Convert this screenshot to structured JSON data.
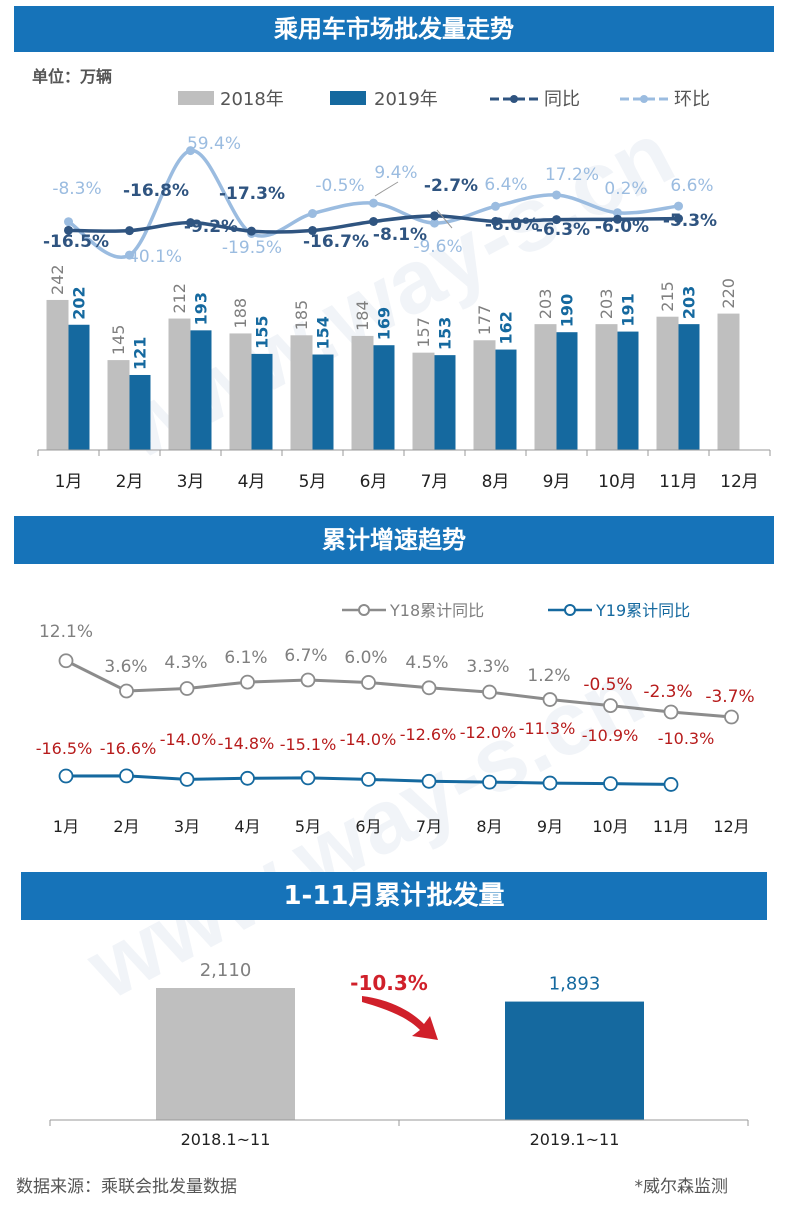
{
  "banners": {
    "monthly": "乘用车市场批发量走势",
    "cumulative_growth": "累计增速趋势",
    "cumulative_volume": "1-11月累计批发量"
  },
  "unit_label": "单位：万辆",
  "footer": {
    "source": "数据来源：乘联会批发量数据",
    "credit": "*威尔森监测"
  },
  "watermark": "www.way-s.cn",
  "colors": {
    "y2018": "#bfbfbf",
    "y2019": "#15699f",
    "yoy_line": "#2f5480",
    "mom_line": "#9bbce0",
    "y18_line": "#8c8c8c",
    "negative_text": "#b71c1c",
    "banner": "#1673b9"
  },
  "chart_data": [
    {
      "id": "monthly",
      "type": "bar",
      "categories": [
        "1月",
        "2月",
        "3月",
        "4月",
        "5月",
        "6月",
        "7月",
        "8月",
        "9月",
        "10月",
        "11月",
        "12月"
      ],
      "series": [
        {
          "name": "2018年",
          "values": [
            242,
            145,
            212,
            188,
            185,
            184,
            157,
            177,
            203,
            203,
            215,
            220
          ]
        },
        {
          "name": "2019年",
          "values": [
            202,
            121,
            193,
            155,
            154,
            169,
            153,
            162,
            190,
            191,
            203,
            null
          ]
        }
      ],
      "line_series": [
        {
          "name": "同比",
          "values": [
            -16.5,
            -16.8,
            -9.2,
            -17.3,
            -16.7,
            -8.1,
            -2.7,
            -8.0,
            -6.3,
            -6.0,
            -5.3,
            null
          ],
          "labels": [
            "-16.5%",
            "-16.8%",
            "-9.2%",
            "-17.3%",
            "-16.7%",
            "-8.1%",
            "-2.7%",
            "-8.0%",
            "-6.3%",
            "-6.0%",
            "-5.3%",
            ""
          ]
        },
        {
          "name": "环比",
          "values": [
            -8.3,
            -40.1,
            59.4,
            -19.5,
            -0.5,
            9.4,
            -9.6,
            6.4,
            17.2,
            0.2,
            6.6,
            null
          ],
          "labels": [
            "-8.3%",
            "-40.1%",
            "59.4%",
            "-19.5%",
            "-0.5%",
            "9.4%",
            "-9.6%",
            "6.4%",
            "17.2%",
            "0.2%",
            "6.6%",
            ""
          ]
        }
      ],
      "legend": [
        "2018年",
        "2019年",
        "同比",
        "环比"
      ],
      "legend_position": "top",
      "grid": false
    },
    {
      "id": "cumulative_growth",
      "type": "line",
      "categories": [
        "1月",
        "2月",
        "3月",
        "4月",
        "5月",
        "6月",
        "7月",
        "8月",
        "9月",
        "10月",
        "11月",
        "12月"
      ],
      "series": [
        {
          "name": "Y18累计同比",
          "values": [
            12.1,
            3.6,
            4.3,
            6.1,
            6.7,
            6.0,
            4.5,
            3.3,
            1.2,
            -0.5,
            -2.3,
            -3.7
          ],
          "labels": [
            "12.1%",
            "3.6%",
            "4.3%",
            "6.1%",
            "6.7%",
            "6.0%",
            "4.5%",
            "3.3%",
            "1.2%",
            "-0.5%",
            "-2.3%",
            "-3.7%"
          ]
        },
        {
          "name": "Y19累计同比",
          "values": [
            -16.5,
            -16.6,
            -14.0,
            -14.8,
            -15.1,
            -14.0,
            -12.6,
            -12.0,
            -11.3,
            -10.9,
            -10.3,
            null
          ],
          "labels": [
            "-16.5%",
            "-16.6%",
            "-14.0%",
            "-14.8%",
            "-15.1%",
            "-14.0%",
            "-12.6%",
            "-12.0%",
            "-11.3%",
            "-10.9%",
            "-10.3%",
            ""
          ]
        }
      ],
      "legend_position": "top-right",
      "grid": false
    },
    {
      "id": "cumulative_volume",
      "type": "bar",
      "categories": [
        "2018.1~11",
        "2019.1~11"
      ],
      "values": [
        2110,
        1893
      ],
      "value_labels": [
        "2,110",
        "1,893"
      ],
      "change_label": "-10.3%"
    }
  ]
}
